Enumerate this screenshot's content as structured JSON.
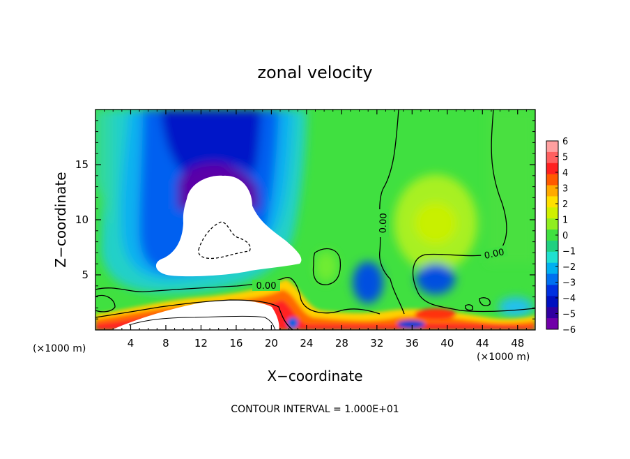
{
  "chart_data": {
    "type": "heatmap",
    "title": "zonal velocity",
    "xlabel": "X−coordinate",
    "ylabel": "Z−coordinate",
    "x_unit_left": "(×1000 m)",
    "x_unit_right": "(×1000 m)",
    "footnote": "CONTOUR INTERVAL = 1.000E+01",
    "xlim": [
      0,
      50
    ],
    "ylim": [
      0,
      20
    ],
    "x_ticks": [
      4,
      8,
      12,
      16,
      20,
      24,
      28,
      32,
      36,
      40,
      44,
      48
    ],
    "y_ticks": [
      5,
      10,
      15
    ],
    "colorbar": {
      "min": -6,
      "max": 6,
      "labels": [
        "6",
        "5",
        "4",
        "3",
        "2",
        "1",
        "0",
        "−1",
        "−2",
        "−3",
        "−4",
        "−5",
        "−6"
      ],
      "colors": [
        "#ffa0a0",
        "#ff6060",
        "#ff2020",
        "#ff5a00",
        "#ffaa00",
        "#ffe000",
        "#d0f000",
        "#90ee20",
        "#40e040",
        "#20d080",
        "#20e0d0",
        "#00b0f0",
        "#0070f0",
        "#0030e0",
        "#0010c0",
        "#3000a0",
        "#7000a8"
      ]
    },
    "contour_labels": [
      "0.00",
      "0.00",
      "0.00"
    ],
    "legend": "right"
  }
}
